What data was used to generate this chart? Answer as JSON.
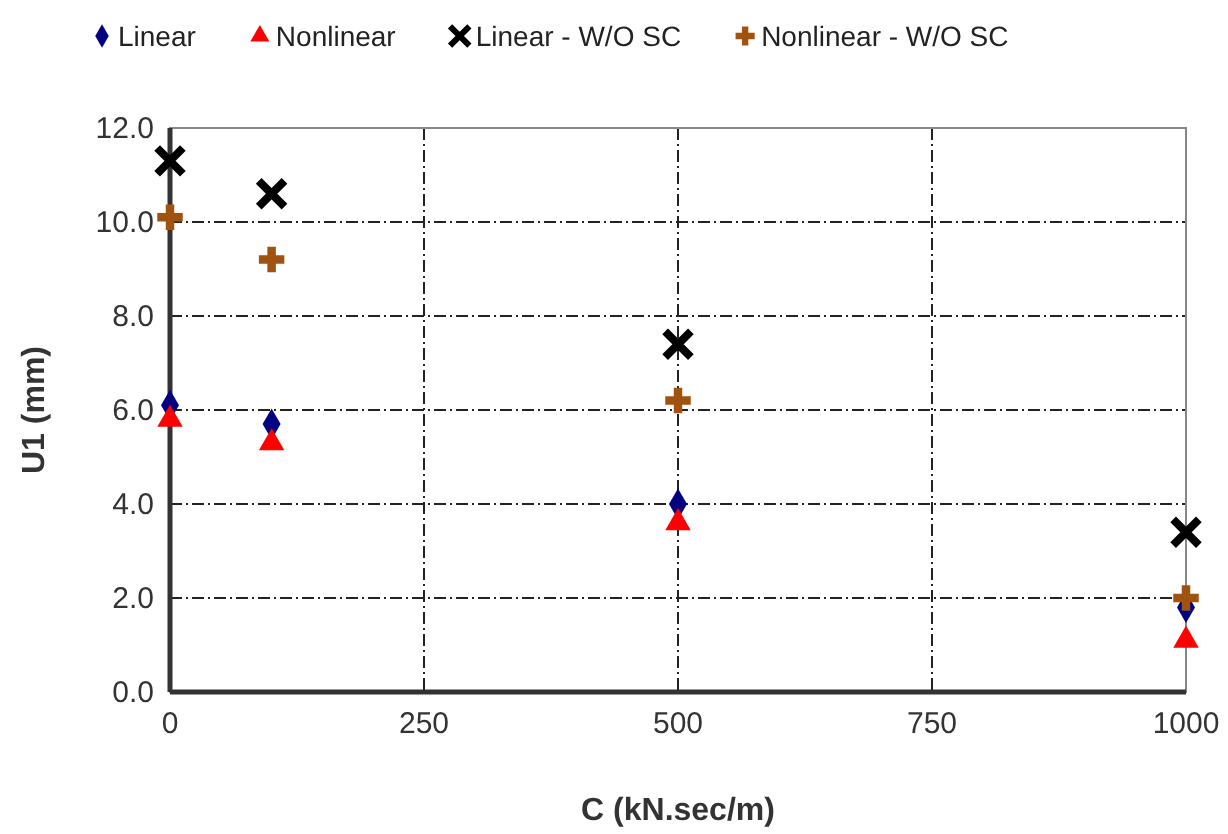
{
  "chart_data": {
    "type": "scatter",
    "xlabel": "C (kN.sec/m)",
    "ylabel": "U1 (mm)",
    "xlim": [
      0,
      1000
    ],
    "xticks": [
      0,
      250,
      500,
      750,
      1000
    ],
    "ylim": [
      0,
      12
    ],
    "yticks": [
      {
        "value": 0,
        "label": "0.0"
      },
      {
        "value": 2,
        "label": "2.0"
      },
      {
        "value": 4,
        "label": "4.0"
      },
      {
        "value": 6,
        "label": "6.0"
      },
      {
        "value": 8,
        "label": "8.0"
      },
      {
        "value": 10,
        "label": "10.0"
      },
      {
        "value": 12,
        "label": "12.0"
      }
    ],
    "grid": true,
    "legend": "top",
    "series": [
      {
        "name": "Linear",
        "color": "#000080",
        "marker": "diamond",
        "x": [
          0,
          100,
          500,
          1000
        ],
        "values": [
          6.1,
          5.7,
          4.0,
          1.8
        ]
      },
      {
        "name": "Nonlinear",
        "color": "#ff0000",
        "marker": "triangle",
        "x": [
          0,
          100,
          500,
          1000
        ],
        "values": [
          5.8,
          5.3,
          3.6,
          1.1
        ]
      },
      {
        "name": "Linear - W/O SC",
        "color": "#000000",
        "marker": "cross",
        "x": [
          0,
          100,
          500,
          1000
        ],
        "values": [
          11.3,
          10.6,
          7.4,
          3.4
        ]
      },
      {
        "name": "Nonlinear - W/O SC",
        "color": "#a0520f",
        "x": [
          0,
          100,
          500,
          1000
        ],
        "values": [
          10.1,
          9.2,
          6.2,
          2.0
        ]
      }
    ]
  }
}
